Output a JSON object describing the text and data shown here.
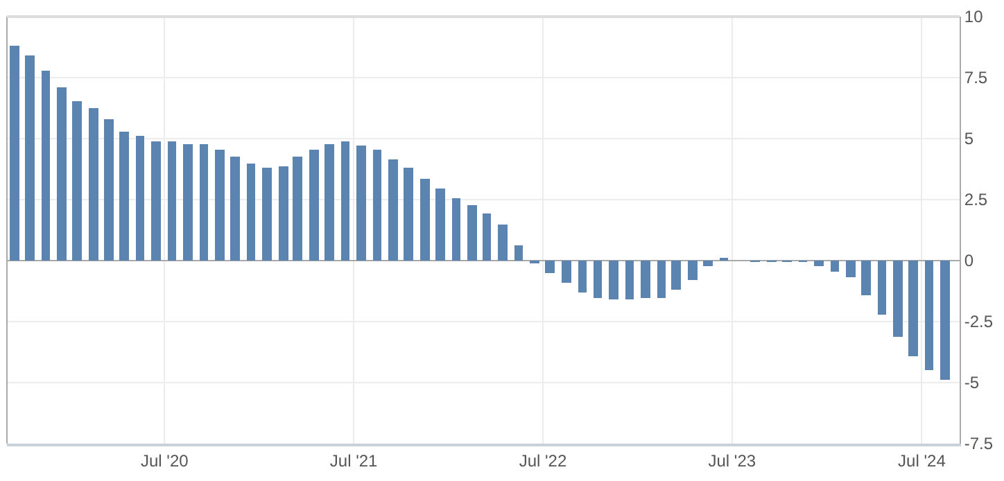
{
  "chart_data": {
    "type": "bar",
    "x": [
      "2019-09-15",
      "2019-10-15",
      "2019-11-15",
      "2019-12-15",
      "2020-01-15",
      "2020-02-15",
      "2020-03-15",
      "2020-04-15",
      "2020-05-15",
      "2020-06-15",
      "2020-07-15",
      "2020-08-15",
      "2020-09-15",
      "2020-10-15",
      "2020-11-15",
      "2020-12-15",
      "2021-01-15",
      "2021-02-15",
      "2021-03-15",
      "2021-04-15",
      "2021-05-15",
      "2021-06-15",
      "2021-07-15",
      "2021-08-15",
      "2021-09-15",
      "2021-10-15",
      "2021-11-15",
      "2021-12-15",
      "2022-01-15",
      "2022-02-15",
      "2022-03-15",
      "2022-04-15",
      "2022-05-15",
      "2022-06-15",
      "2022-07-15",
      "2022-08-15",
      "2022-09-15",
      "2022-10-15",
      "2022-11-15",
      "2022-12-15",
      "2023-01-15",
      "2023-02-15",
      "2023-03-15",
      "2023-04-15",
      "2023-05-15",
      "2023-06-15",
      "2023-07-15",
      "2023-08-15",
      "2023-09-15",
      "2023-10-15",
      "2023-11-15",
      "2023-12-15",
      "2024-01-15",
      "2024-02-15",
      "2024-03-15",
      "2024-04-15",
      "2024-05-15",
      "2024-06-15",
      "2024-07-15",
      "2024-08-15"
    ],
    "series": [
      {
        "color": "#5b84b1",
        "values": [
          8.8,
          8.39,
          7.76,
          7.09,
          6.54,
          6.26,
          5.8,
          5.31,
          5.09,
          4.89,
          4.89,
          4.76,
          4.76,
          4.54,
          4.28,
          4.0,
          3.8,
          3.85,
          4.28,
          4.54,
          4.76,
          4.89,
          4.69,
          4.54,
          4.13,
          3.8,
          3.37,
          2.96,
          2.56,
          2.28,
          1.94,
          1.46,
          0.65,
          -0.11,
          -0.5,
          -0.93,
          -1.31,
          -1.54,
          -1.59,
          -1.59,
          -1.54,
          -1.54,
          -1.2,
          -0.78,
          -0.2,
          0.09,
          0,
          -0.05,
          -0.05,
          -0.05,
          -0.05,
          -0.2,
          -0.46,
          -0.7,
          -1.41,
          -2.22,
          -3.11,
          -3.94,
          -4.5,
          -4.91
        ]
      }
    ],
    "xlim": [
      "2019-09-01",
      "2024-09-12"
    ],
    "xticks": [
      {
        "value": "2020-07-01",
        "label": "Jul '20"
      },
      {
        "value": "2021-07-01",
        "label": "Jul '21"
      },
      {
        "value": "2022-07-01",
        "label": "Jul '22"
      },
      {
        "value": "2023-07-01",
        "label": "Jul '23"
      },
      {
        "value": "2024-07-01",
        "label": "Jul '24"
      }
    ],
    "ylim": [
      -7.5,
      10
    ],
    "yticks": [
      -7.5,
      -5,
      -2.5,
      0,
      2.5,
      5,
      7.5,
      10
    ],
    "grid": true
  }
}
